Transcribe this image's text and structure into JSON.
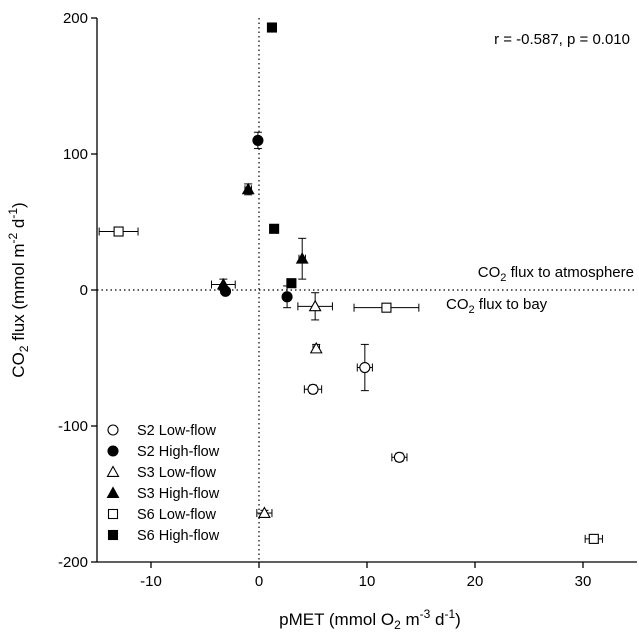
{
  "chart_data": {
    "type": "scatter",
    "title": "",
    "annotation_stats": "r = -0.587, p = 0.010",
    "annotation_atmosphere": {
      "main": "CO",
      "sub": "2",
      "rest": " flux to atmosphere"
    },
    "annotation_bay": {
      "main": "CO",
      "sub": "2",
      "rest": " flux to bay"
    },
    "xlabel": {
      "pre": "pMET (mmol O",
      "sub": "2",
      "mid": " m",
      "sup1": "-3",
      "mid2": " d",
      "sup2": "-1",
      "post": ")"
    },
    "ylabel": {
      "pre": "CO",
      "sub": "2",
      "mid": " flux (mmol m",
      "sup1": "-2",
      "mid2": " d",
      "sup2": "-1",
      "post": ")"
    },
    "xlim": [
      -15,
      35
    ],
    "ylim": [
      -200,
      200
    ],
    "x_ticks": [
      -10,
      0,
      10,
      20,
      30
    ],
    "y_ticks": [
      -200,
      -100,
      0,
      100,
      200
    ],
    "reference_lines": {
      "x": 0,
      "y": 0
    },
    "grid": false,
    "legend_placement": "bottom-left",
    "series": [
      {
        "name": "S2 Low-flow",
        "marker": "circle-open",
        "points": [
          {
            "x": 5,
            "y": -73,
            "xerr": 0.8,
            "yerr": 3
          },
          {
            "x": 9.8,
            "y": -57,
            "xerr": 0.7,
            "yerr": 17
          },
          {
            "x": 13,
            "y": -123,
            "xerr": 0.7,
            "yerr": 3
          }
        ]
      },
      {
        "name": "S2 High-flow",
        "marker": "circle-filled",
        "points": [
          {
            "x": -0.1,
            "y": 110,
            "xerr": 0.3,
            "yerr": 6
          },
          {
            "x": -3.1,
            "y": -1,
            "xerr": 0.2,
            "yerr": 2
          },
          {
            "x": 2.6,
            "y": -5,
            "xerr": 0.3,
            "yerr": 8
          }
        ]
      },
      {
        "name": "S3 Low-flow",
        "marker": "triangle-open",
        "points": [
          {
            "x": 5.2,
            "y": -12,
            "xerr": 1.6,
            "yerr": 10
          },
          {
            "x": 5.3,
            "y": -43,
            "xerr": 0.3,
            "yerr": 3
          },
          {
            "x": 0.5,
            "y": -164,
            "xerr": 0.7,
            "yerr": 2
          }
        ]
      },
      {
        "name": "S3 High-flow",
        "marker": "triangle-filled",
        "points": [
          {
            "x": -1,
            "y": 74,
            "xerr": 0.3,
            "yerr": 4
          },
          {
            "x": -3.3,
            "y": 4,
            "xerr": 1.1,
            "yerr": 4
          },
          {
            "x": 4,
            "y": 23,
            "xerr": 0.3,
            "yerr": 15
          }
        ]
      },
      {
        "name": "S6 Low-flow",
        "marker": "square-open",
        "points": [
          {
            "x": -13,
            "y": 43,
            "xerr": 1.8,
            "yerr": 2
          },
          {
            "x": 11.8,
            "y": -13,
            "xerr": 3,
            "yerr": 2
          },
          {
            "x": 31,
            "y": -183,
            "xerr": 0.8,
            "yerr": 2
          }
        ]
      },
      {
        "name": "S6 High-flow",
        "marker": "square-filled",
        "points": [
          {
            "x": 1.2,
            "y": 193,
            "xerr": 0.3,
            "yerr": 2
          },
          {
            "x": 1.4,
            "y": 45,
            "xerr": 0.2,
            "yerr": 2
          },
          {
            "x": 3,
            "y": 5,
            "xerr": 0.2,
            "yerr": 2
          }
        ]
      }
    ]
  }
}
